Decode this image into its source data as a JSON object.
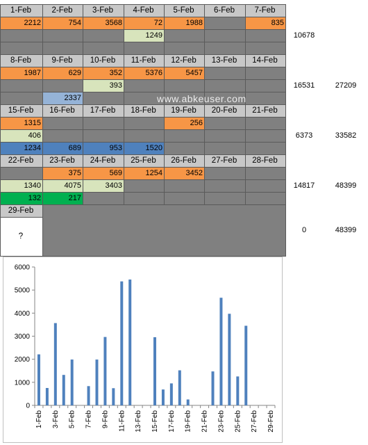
{
  "colors": {
    "header": "#c8c8c8",
    "gray": "#808080",
    "orange": "#f79646",
    "lightgreen": "#d8e4bc",
    "blue": "#4f81bd",
    "lightblue": "#95b3d7",
    "green": "#00b050",
    "white": "#ffffff",
    "bar": "#4f81bd"
  },
  "weeks": [
    {
      "days": [
        "1-Feb",
        "2-Feb",
        "3-Feb",
        "4-Feb",
        "5-Feb",
        "6-Feb",
        "7-Feb"
      ],
      "rows": [
        [
          {
            "v": "2212",
            "c": "orange"
          },
          {
            "v": "754",
            "c": "orange"
          },
          {
            "v": "3568",
            "c": "orange"
          },
          {
            "v": "72",
            "c": "orange"
          },
          {
            "v": "1988",
            "c": "orange"
          },
          {
            "v": "",
            "c": "gray"
          },
          {
            "v": "835",
            "c": "orange"
          }
        ],
        [
          {
            "v": "",
            "c": "gray"
          },
          {
            "v": "",
            "c": "gray"
          },
          {
            "v": "",
            "c": "gray"
          },
          {
            "v": "1249",
            "c": "lightgreen"
          },
          {
            "v": "",
            "c": "gray"
          },
          {
            "v": "",
            "c": "gray"
          },
          {
            "v": "",
            "c": "gray"
          }
        ],
        [
          {
            "v": "",
            "c": "gray"
          },
          {
            "v": "",
            "c": "gray"
          },
          {
            "v": "",
            "c": "gray"
          },
          {
            "v": "",
            "c": "gray"
          },
          {
            "v": "",
            "c": "gray"
          },
          {
            "v": "",
            "c": "gray"
          },
          {
            "v": "",
            "c": "gray"
          }
        ]
      ],
      "week_total": "10678",
      "running_total": ""
    },
    {
      "days": [
        "8-Feb",
        "9-Feb",
        "10-Feb",
        "11-Feb",
        "12-Feb",
        "13-Feb",
        "14-Feb"
      ],
      "rows": [
        [
          {
            "v": "1987",
            "c": "orange"
          },
          {
            "v": "629",
            "c": "orange"
          },
          {
            "v": "352",
            "c": "orange"
          },
          {
            "v": "5376",
            "c": "orange"
          },
          {
            "v": "5457",
            "c": "orange"
          },
          {
            "v": "",
            "c": "gray"
          },
          {
            "v": "",
            "c": "gray"
          }
        ],
        [
          {
            "v": "",
            "c": "gray"
          },
          {
            "v": "",
            "c": "gray"
          },
          {
            "v": "393",
            "c": "lightgreen"
          },
          {
            "v": "",
            "c": "gray"
          },
          {
            "v": "",
            "c": "gray"
          },
          {
            "v": "",
            "c": "gray"
          },
          {
            "v": "",
            "c": "gray"
          }
        ],
        [
          {
            "v": "",
            "c": "gray"
          },
          {
            "v": "2337",
            "c": "lightblue"
          },
          {
            "v": "",
            "c": "gray"
          },
          {
            "v": "",
            "c": "gray"
          },
          {
            "v": "",
            "c": "gray"
          },
          {
            "v": "",
            "c": "gray"
          },
          {
            "v": "",
            "c": "gray"
          }
        ]
      ],
      "week_total": "16531",
      "running_total": "27209"
    },
    {
      "days": [
        "15-Feb",
        "16-Feb",
        "17-Feb",
        "18-Feb",
        "19-Feb",
        "20-Feb",
        "21-Feb"
      ],
      "rows": [
        [
          {
            "v": "1315",
            "c": "orange"
          },
          {
            "v": "",
            "c": "gray"
          },
          {
            "v": "",
            "c": "gray"
          },
          {
            "v": "",
            "c": "gray"
          },
          {
            "v": "256",
            "c": "orange"
          },
          {
            "v": "",
            "c": "gray"
          },
          {
            "v": "",
            "c": "gray"
          }
        ],
        [
          {
            "v": "406",
            "c": "lightgreen"
          },
          {
            "v": "",
            "c": "gray"
          },
          {
            "v": "",
            "c": "gray"
          },
          {
            "v": "",
            "c": "gray"
          },
          {
            "v": "",
            "c": "gray"
          },
          {
            "v": "",
            "c": "gray"
          },
          {
            "v": "",
            "c": "gray"
          }
        ],
        [
          {
            "v": "1234",
            "c": "blue"
          },
          {
            "v": "689",
            "c": "blue"
          },
          {
            "v": "953",
            "c": "blue"
          },
          {
            "v": "1520",
            "c": "blue"
          },
          {
            "v": "",
            "c": "gray"
          },
          {
            "v": "",
            "c": "gray"
          },
          {
            "v": "",
            "c": "gray"
          }
        ]
      ],
      "week_total": "6373",
      "running_total": "33582"
    },
    {
      "days": [
        "22-Feb",
        "23-Feb",
        "24-Feb",
        "25-Feb",
        "26-Feb",
        "27-Feb",
        "28-Feb"
      ],
      "rows": [
        [
          {
            "v": "",
            "c": "gray"
          },
          {
            "v": "375",
            "c": "orange"
          },
          {
            "v": "569",
            "c": "orange"
          },
          {
            "v": "1254",
            "c": "orange"
          },
          {
            "v": "3452",
            "c": "orange"
          },
          {
            "v": "",
            "c": "gray"
          },
          {
            "v": "",
            "c": "gray"
          }
        ],
        [
          {
            "v": "1340",
            "c": "lightgreen"
          },
          {
            "v": "4075",
            "c": "lightgreen"
          },
          {
            "v": "3403",
            "c": "lightgreen"
          },
          {
            "v": "",
            "c": "gray"
          },
          {
            "v": "",
            "c": "gray"
          },
          {
            "v": "",
            "c": "gray"
          },
          {
            "v": "",
            "c": "gray"
          }
        ],
        [
          {
            "v": "132",
            "c": "green"
          },
          {
            "v": "217",
            "c": "green"
          },
          {
            "v": "",
            "c": "gray"
          },
          {
            "v": "",
            "c": "gray"
          },
          {
            "v": "",
            "c": "gray"
          },
          {
            "v": "",
            "c": "gray"
          },
          {
            "v": "",
            "c": "gray"
          }
        ]
      ],
      "week_total": "14817",
      "running_total": "48399"
    }
  ],
  "last_week": {
    "day": "29-Feb",
    "value": "?",
    "week_total": "0",
    "running_total": "48399"
  },
  "watermark": "www.abkeuser.com",
  "chart_data": {
    "type": "bar",
    "categories": [
      "1-Feb",
      "2-Feb",
      "3-Feb",
      "4-Feb",
      "5-Feb",
      "6-Feb",
      "7-Feb",
      "8-Feb",
      "9-Feb",
      "10-Feb",
      "11-Feb",
      "12-Feb",
      "13-Feb",
      "14-Feb",
      "15-Feb",
      "16-Feb",
      "17-Feb",
      "18-Feb",
      "19-Feb",
      "20-Feb",
      "21-Feb",
      "22-Feb",
      "23-Feb",
      "24-Feb",
      "25-Feb",
      "26-Feb",
      "27-Feb",
      "28-Feb",
      "29-Feb"
    ],
    "values": [
      2212,
      754,
      3568,
      1321,
      1988,
      0,
      835,
      1987,
      2966,
      745,
      5376,
      5457,
      0,
      0,
      2955,
      689,
      953,
      1520,
      256,
      0,
      0,
      1472,
      4667,
      3972,
      1254,
      3452,
      0,
      0,
      0
    ],
    "tick_labels": [
      "1-Feb",
      "3-Feb",
      "5-Feb",
      "7-Feb",
      "9-Feb",
      "11-Feb",
      "13-Feb",
      "15-Feb",
      "17-Feb",
      "19-Feb",
      "21-Feb",
      "23-Feb",
      "25-Feb",
      "27-Feb",
      "29-Feb"
    ],
    "y_ticks": [
      "0",
      "1000",
      "2000",
      "3000",
      "4000",
      "5000",
      "6000"
    ],
    "ylim": [
      0,
      6000
    ],
    "grid": false,
    "legend": "none",
    "title": "",
    "xlabel": "",
    "ylabel": ""
  }
}
